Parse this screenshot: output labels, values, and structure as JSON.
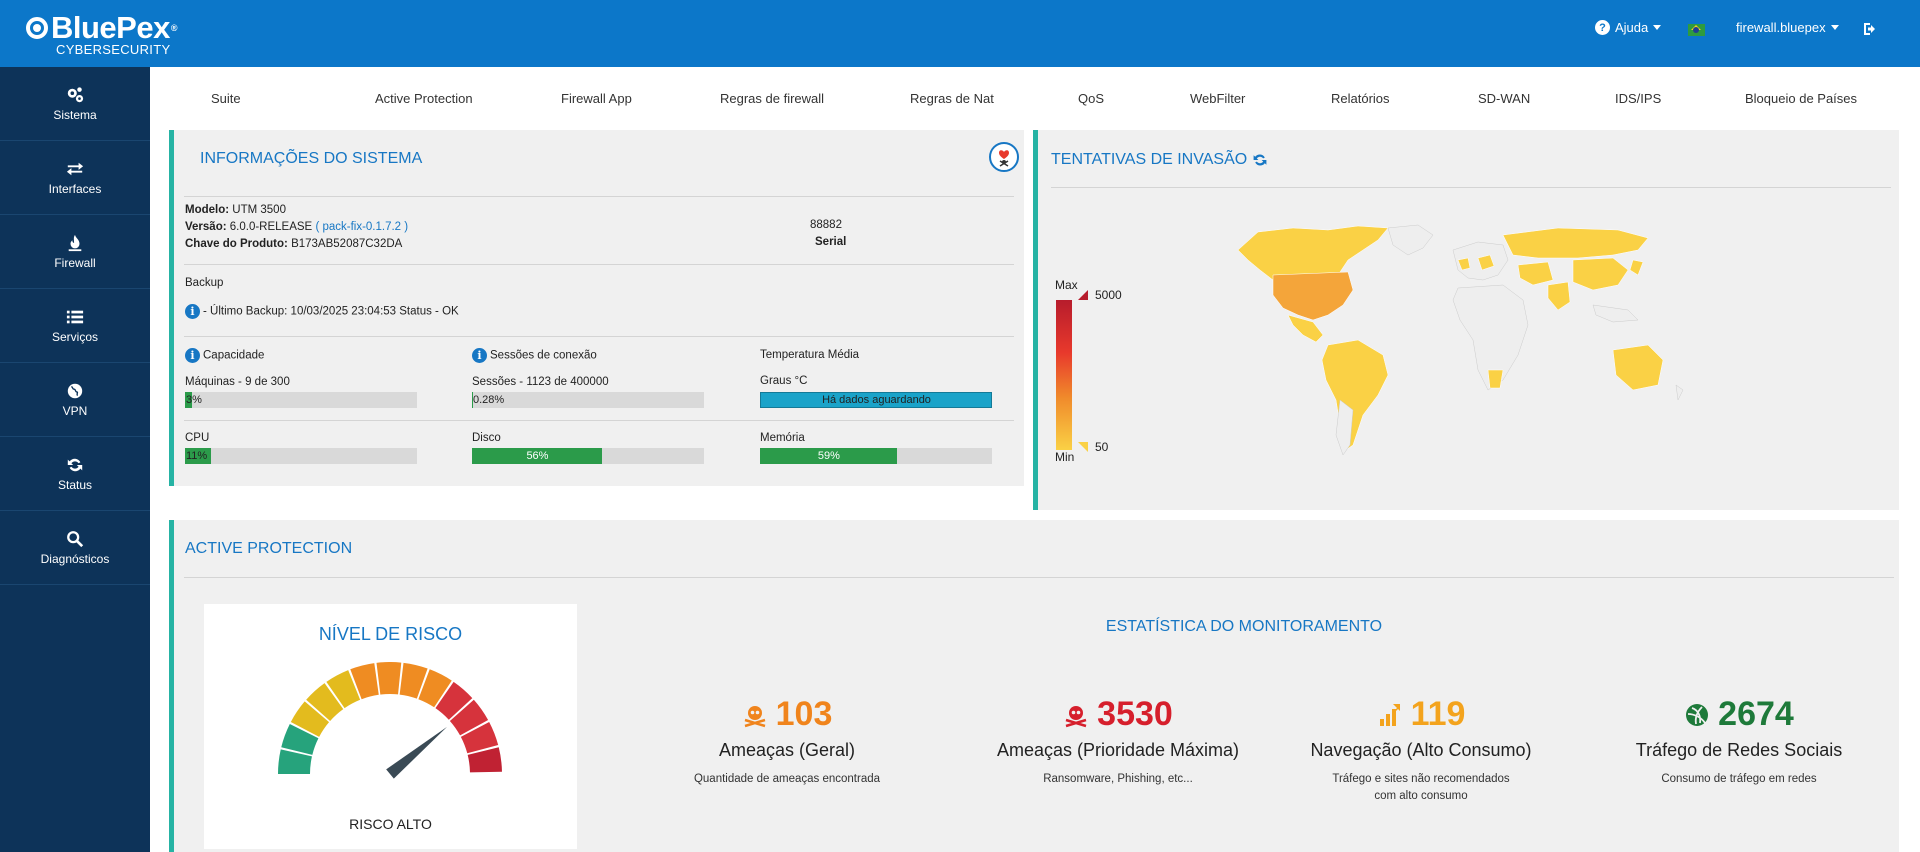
{
  "header": {
    "brand": "BluePex",
    "brand_reg": "®",
    "brand_sub": "CYBERSECURITY",
    "help_label": "Ajuda",
    "user_label": "firewall.bluepex"
  },
  "sidebar": {
    "items": [
      {
        "label": "Sistema",
        "icon": "gears-icon"
      },
      {
        "label": "Interfaces",
        "icon": "arrows-icon"
      },
      {
        "label": "Firewall",
        "icon": "fire-icon"
      },
      {
        "label": "Serviços",
        "icon": "list-icon"
      },
      {
        "label": "VPN",
        "icon": "globe-icon"
      },
      {
        "label": "Status",
        "icon": "refresh-icon"
      },
      {
        "label": "Diagnósticos",
        "icon": "search-icon"
      }
    ]
  },
  "topnav": {
    "items": [
      "Suite",
      "Active Protection",
      "Firewall App",
      "Regras de firewall",
      "Regras de Nat",
      "QoS",
      "WebFilter",
      "Relatórios",
      "SD-WAN",
      "IDS/IPS",
      "Bloqueio de Países"
    ]
  },
  "system_info": {
    "title": "INFORMAÇÕES DO SISTEMA",
    "model_label": "Modelo:",
    "model_value": "UTM 3500",
    "version_label": "Versão:",
    "version_value": "6.0.0-RELEASE",
    "version_pack": "( pack-fix-0.1.7.2 )",
    "key_label": "Chave do Produto:",
    "key_value": "B173AB52087C32DA",
    "serial_value": "88882",
    "serial_label": "Serial",
    "backup_title": "Backup",
    "backup_text": "- Último Backup: 10/03/2025 23:04:53 Status - OK",
    "capacity_title": "Capacidade",
    "capacity_text": "Máquinas - 9 de 300",
    "capacity_pct": "3%",
    "capacity_fraction": 0.03,
    "sessions_title": "Sessões de conexão",
    "sessions_text": "Sessões - 1123 de 400000",
    "sessions_pct": "0.28%",
    "sessions_fraction": 0.0028,
    "temp_title": "Temperatura Média",
    "temp_text": "Graus °C",
    "temp_bar_text": "Há dados aguardando",
    "cpu_label": "CPU",
    "cpu_pct": "11%",
    "cpu_fraction": 0.11,
    "disk_label": "Disco",
    "disk_pct": "56%",
    "disk_fraction": 0.56,
    "mem_label": "Memória",
    "mem_pct": "59%",
    "mem_fraction": 0.59
  },
  "invasion": {
    "title": "TENTATIVAS DE INVASÃO",
    "legend_max": "Max",
    "legend_min": "Min",
    "legend_max_value": "5000",
    "legend_min_value": "50"
  },
  "active_protection": {
    "title": "ACTIVE PROTECTION",
    "risk_title": "NÍVEL DE RISCO",
    "risk_label": "RISCO ALTO",
    "risk_level": 0.78,
    "stats_title": "ESTATÍSTICA DO MONITORAMENTO",
    "stats": [
      {
        "value": "103",
        "name": "Ameaças (Geral)",
        "desc": "Quantidade de ameaças encontrada",
        "color": "#f0841c",
        "icon": "skull-icon"
      },
      {
        "value": "3530",
        "name": "Ameaças (Prioridade Máxima)",
        "desc": "Ransomware, Phishing, etc...",
        "color": "#d61f2c",
        "icon": "skull-icon"
      },
      {
        "value": "119",
        "name": "Navegação (Alto Consumo)",
        "desc": "Tráfego e sites não recomendados com alto consumo",
        "color": "#f3a31d",
        "icon": "signal-bars-icon"
      },
      {
        "value": "2674",
        "name": "Tráfego de Redes Sociais",
        "desc": "Consumo de tráfego em redes",
        "color": "#1e7a3a",
        "icon": "social-icon"
      }
    ]
  },
  "colors": {
    "header_bg": "#0c77c9",
    "sidebar_bg": "#0d3359",
    "accent_teal": "#26b3a4",
    "title_blue": "#1777c4",
    "bar_green": "#2b9b4a",
    "temp_bar": "#1aa3c9"
  }
}
